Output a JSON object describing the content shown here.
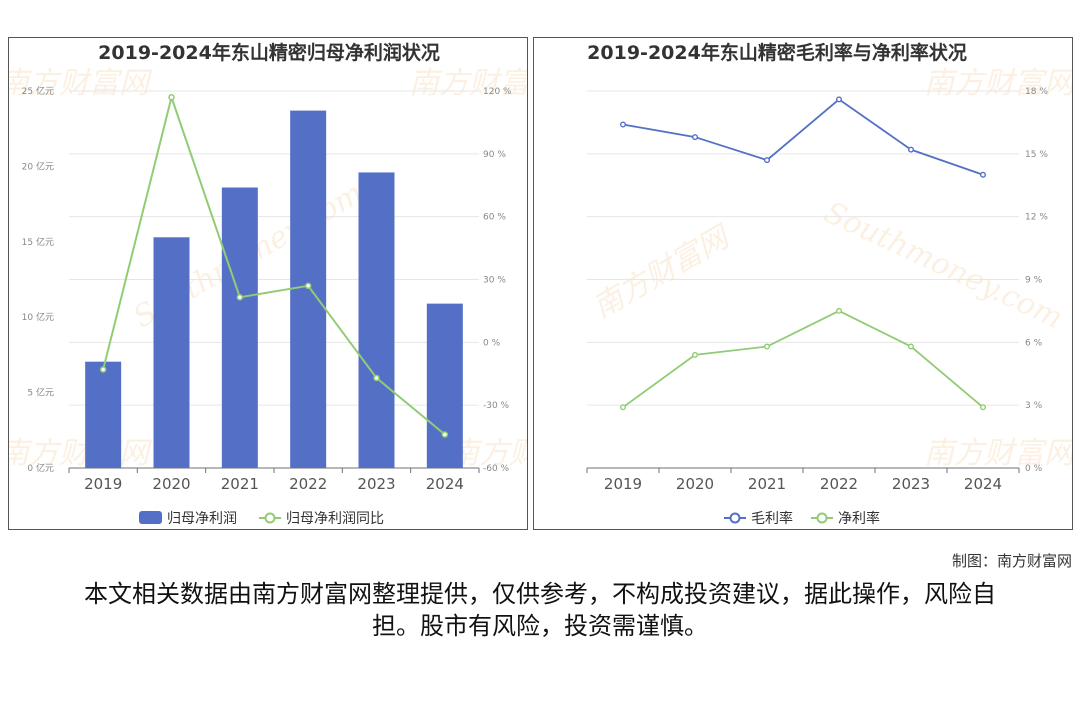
{
  "credit": "制图：南方财富网",
  "disclaimer": "本文相关数据由南方财富网整理提供，仅供参考，不构成投资建议，据此操作，风险自担。股市有风险，投资需谨慎。",
  "watermark": {
    "cn": "南方财富网",
    "en": "Southmoney.com"
  },
  "colors": {
    "bar": "#5470c6",
    "line_green": "#91cc75",
    "line_blue": "#5470c6"
  },
  "chart_data": [
    {
      "type": "bar",
      "title": "2019-2024年东山精密归母净利润状况",
      "categories": [
        "2019",
        "2020",
        "2021",
        "2022",
        "2023",
        "2024"
      ],
      "left_axis": {
        "ticks": [
          "0 亿元",
          "5 亿元",
          "10 亿元",
          "15 亿元",
          "20 亿元",
          "25 亿元"
        ],
        "ylim": [
          0,
          25
        ]
      },
      "right_axis": {
        "ticks": [
          "-60 %",
          "-30 %",
          "0 %",
          "30 %",
          "60 %",
          "90 %",
          "120 %"
        ],
        "ylim": [
          -60,
          120
        ]
      },
      "series": [
        {
          "name": "归母净利润",
          "type": "bar",
          "axis": "left",
          "values": [
            7.05,
            15.3,
            18.6,
            23.7,
            19.6,
            10.9
          ]
        },
        {
          "name": "归母净利润同比",
          "type": "line",
          "axis": "right",
          "values": [
            -13,
            117,
            21.5,
            27,
            -17,
            -44
          ]
        }
      ],
      "legend_position": "bottom"
    },
    {
      "type": "line",
      "title": "2019-2024年东山精密毛利率与净利率状况",
      "categories": [
        "2019",
        "2020",
        "2021",
        "2022",
        "2023",
        "2024"
      ],
      "right_axis": {
        "ticks": [
          "0 %",
          "3 %",
          "6 %",
          "9 %",
          "12 %",
          "15 %",
          "18 %"
        ],
        "ylim": [
          0,
          18
        ]
      },
      "series": [
        {
          "name": "毛利率",
          "values": [
            16.4,
            15.8,
            14.7,
            17.6,
            15.2,
            14.0
          ]
        },
        {
          "name": "净利率",
          "values": [
            2.9,
            5.4,
            5.8,
            7.5,
            5.8,
            2.9
          ]
        }
      ],
      "legend_position": "bottom"
    }
  ]
}
